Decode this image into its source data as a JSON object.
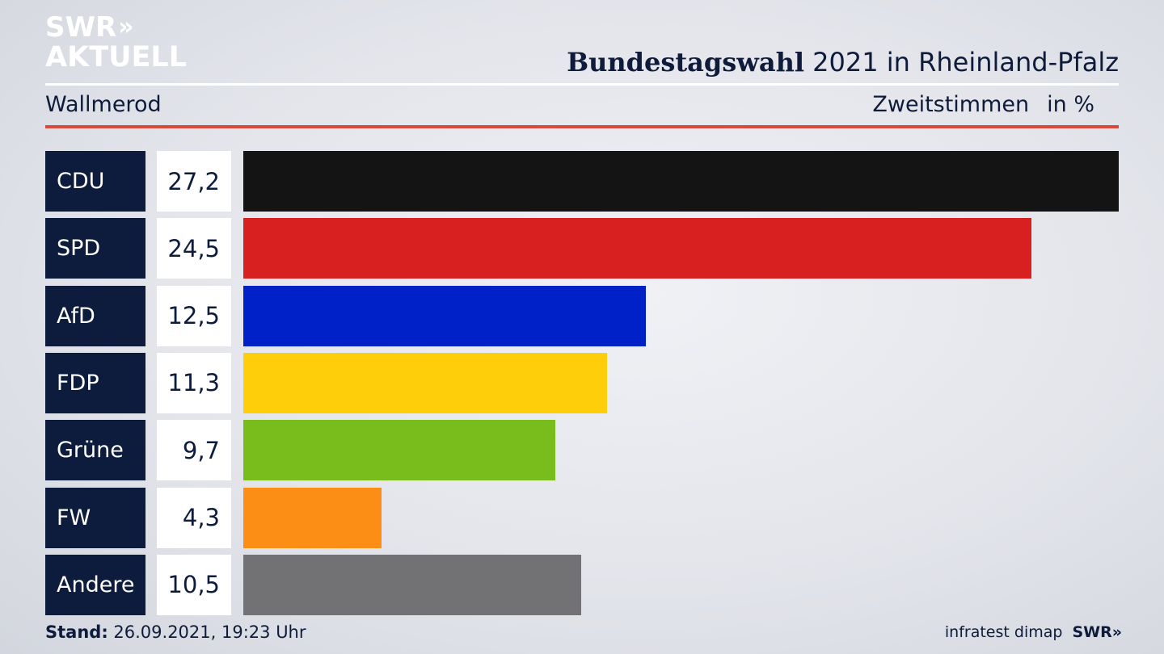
{
  "logo": {
    "line1": "SWR",
    "arrows": "»",
    "line2": "AKTUELL"
  },
  "header": {
    "title_bold": "Bundestagswahl",
    "title_rest": "2021 in Rheinland-Pfalz",
    "region": "Wallmerod",
    "metric": "Zweitstimmen",
    "unit": "in %"
  },
  "chart_data": {
    "type": "bar",
    "orientation": "horizontal",
    "categories": [
      "CDU",
      "SPD",
      "AfD",
      "FDP",
      "Grüne",
      "FW",
      "Andere"
    ],
    "values": [
      27.2,
      24.5,
      12.5,
      11.3,
      9.7,
      4.3,
      10.5
    ],
    "value_labels": [
      "27,2",
      "24,5",
      "12,5",
      "11,3",
      "9,7",
      "4,3",
      "10,5"
    ],
    "colors": [
      "#141414",
      "#d92020",
      "#0020c8",
      "#fece0a",
      "#78bd1c",
      "#fc8e16",
      "#727274"
    ],
    "title": "Bundestagswahl 2021 in Rheinland-Pfalz",
    "xlabel": "",
    "ylabel": "",
    "grid": false,
    "legend": "none"
  },
  "footer": {
    "stand_label": "Stand:",
    "stand_value": "26.09.2021, 19:23 Uhr",
    "source": "infratest dimap",
    "swr": "SWR",
    "swr_arrows": "»"
  }
}
